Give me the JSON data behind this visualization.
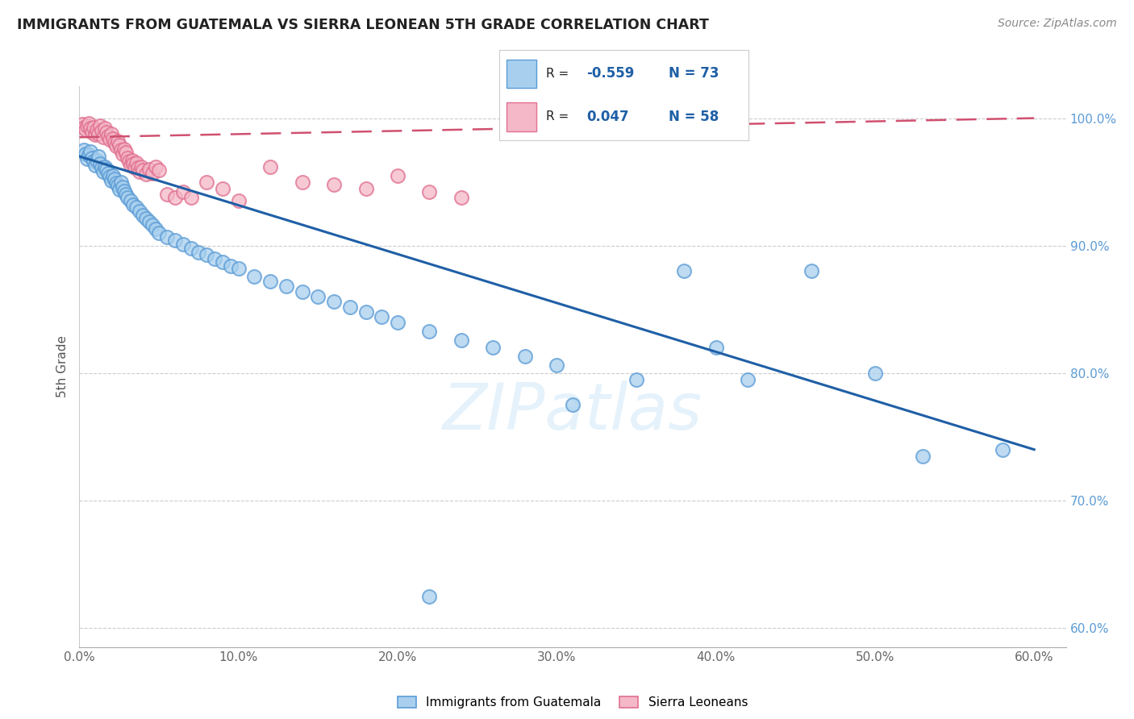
{
  "title": "IMMIGRANTS FROM GUATEMALA VS SIERRA LEONEAN 5TH GRADE CORRELATION CHART",
  "source": "Source: ZipAtlas.com",
  "ylabel": "5th Grade",
  "xlim": [
    0.0,
    0.62
  ],
  "ylim": [
    0.585,
    1.025
  ],
  "ytick_values": [
    1.0,
    0.9,
    0.8,
    0.7,
    0.6
  ],
  "ytick_labels": [
    "100.0%",
    "90.0%",
    "80.0%",
    "70.0%",
    "60.0%"
  ],
  "xtick_values": [
    0.0,
    0.1,
    0.2,
    0.3,
    0.4,
    0.5,
    0.6
  ],
  "xtick_labels": [
    "0.0%",
    "10.0%",
    "20.0%",
    "30.0%",
    "40.0%",
    "50.0%",
    "60.0%"
  ],
  "legend_blue_label": "Immigrants from Guatemala",
  "legend_pink_label": "Sierra Leoneans",
  "blue_R": "-0.559",
  "blue_N": "73",
  "pink_R": "0.047",
  "pink_N": "58",
  "blue_color": "#a8d0ee",
  "pink_color": "#f4b8c8",
  "blue_edge_color": "#5b9bd5",
  "pink_edge_color": "#e07090",
  "blue_line_color": "#1f5fa6",
  "pink_line_color": "#d05070",
  "watermark": "ZIPatlas",
  "blue_line_x0": 0.0,
  "blue_line_y0": 0.97,
  "blue_line_x1": 0.6,
  "blue_line_y1": 0.74,
  "pink_line_x0": 0.0,
  "pink_line_y0": 0.985,
  "pink_line_x1": 0.6,
  "pink_line_y1": 1.0,
  "blue_scatter_x": [
    0.003,
    0.004,
    0.005,
    0.006,
    0.007,
    0.008,
    0.009,
    0.01,
    0.011,
    0.012,
    0.013,
    0.014,
    0.015,
    0.016,
    0.017,
    0.018,
    0.019,
    0.02,
    0.021,
    0.022,
    0.023,
    0.024,
    0.025,
    0.026,
    0.027,
    0.028,
    0.029,
    0.03,
    0.032,
    0.034,
    0.036,
    0.038,
    0.04,
    0.042,
    0.044,
    0.046,
    0.048,
    0.05,
    0.055,
    0.06,
    0.065,
    0.07,
    0.075,
    0.08,
    0.085,
    0.09,
    0.095,
    0.1,
    0.11,
    0.12,
    0.13,
    0.14,
    0.15,
    0.16,
    0.17,
    0.18,
    0.19,
    0.2,
    0.22,
    0.24,
    0.26,
    0.28,
    0.3,
    0.35,
    0.38,
    0.4,
    0.42,
    0.46,
    0.5,
    0.53,
    0.58,
    0.31,
    0.22
  ],
  "blue_scatter_y": [
    0.975,
    0.972,
    0.968,
    0.971,
    0.974,
    0.969,
    0.966,
    0.963,
    0.967,
    0.97,
    0.964,
    0.961,
    0.958,
    0.962,
    0.96,
    0.957,
    0.954,
    0.951,
    0.955,
    0.952,
    0.949,
    0.947,
    0.944,
    0.95,
    0.946,
    0.943,
    0.94,
    0.938,
    0.935,
    0.932,
    0.93,
    0.927,
    0.924,
    0.921,
    0.919,
    0.916,
    0.913,
    0.91,
    0.907,
    0.904,
    0.901,
    0.898,
    0.895,
    0.893,
    0.89,
    0.887,
    0.884,
    0.882,
    0.876,
    0.872,
    0.868,
    0.864,
    0.86,
    0.856,
    0.852,
    0.848,
    0.844,
    0.84,
    0.833,
    0.826,
    0.82,
    0.813,
    0.806,
    0.795,
    0.88,
    0.82,
    0.795,
    0.88,
    0.8,
    0.735,
    0.74,
    0.775,
    0.625
  ],
  "pink_scatter_x": [
    0.002,
    0.003,
    0.004,
    0.005,
    0.006,
    0.007,
    0.008,
    0.009,
    0.01,
    0.011,
    0.012,
    0.013,
    0.014,
    0.015,
    0.016,
    0.017,
    0.018,
    0.019,
    0.02,
    0.021,
    0.022,
    0.023,
    0.024,
    0.025,
    0.026,
    0.027,
    0.028,
    0.029,
    0.03,
    0.031,
    0.032,
    0.033,
    0.034,
    0.035,
    0.036,
    0.037,
    0.038,
    0.039,
    0.04,
    0.042,
    0.044,
    0.046,
    0.048,
    0.05,
    0.055,
    0.06,
    0.065,
    0.07,
    0.08,
    0.09,
    0.1,
    0.12,
    0.14,
    0.16,
    0.18,
    0.2,
    0.22,
    0.24
  ],
  "pink_scatter_y": [
    0.995,
    0.993,
    0.991,
    0.994,
    0.996,
    0.992,
    0.989,
    0.993,
    0.987,
    0.991,
    0.988,
    0.994,
    0.99,
    0.985,
    0.992,
    0.989,
    0.986,
    0.983,
    0.988,
    0.984,
    0.981,
    0.978,
    0.982,
    0.979,
    0.975,
    0.972,
    0.976,
    0.973,
    0.969,
    0.966,
    0.963,
    0.967,
    0.964,
    0.961,
    0.965,
    0.961,
    0.958,
    0.962,
    0.959,
    0.956,
    0.96,
    0.957,
    0.962,
    0.959,
    0.94,
    0.938,
    0.942,
    0.938,
    0.95,
    0.945,
    0.935,
    0.962,
    0.95,
    0.948,
    0.945,
    0.955,
    0.942,
    0.938
  ]
}
